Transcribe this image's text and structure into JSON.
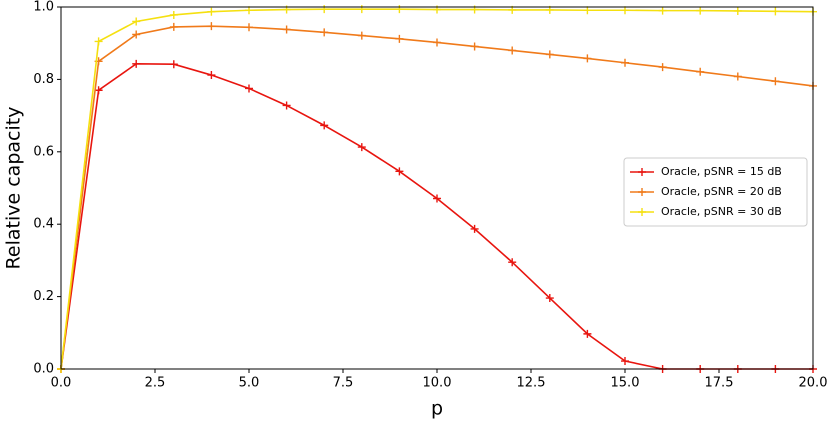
{
  "chart_data": {
    "type": "line",
    "x_label": "p",
    "y_label": "Relative capacity",
    "x": [
      0,
      1,
      2,
      3,
      4,
      5,
      6,
      7,
      8,
      9,
      10,
      11,
      12,
      13,
      14,
      15,
      16,
      17,
      18,
      19,
      20
    ],
    "series": [
      {
        "name": "Oracle, pSNR = 15 dB",
        "color": "#e8150f",
        "values": [
          0,
          0.77,
          0.843,
          0.842,
          0.812,
          0.775,
          0.728,
          0.673,
          0.613,
          0.546,
          0.471,
          0.387,
          0.295,
          0.196,
          0.097,
          0.022,
          0,
          0,
          0,
          0,
          0
        ]
      },
      {
        "name": "Oracle, pSNR = 20 dB",
        "color": "#f07a1a",
        "values": [
          0,
          0.85,
          0.924,
          0.945,
          0.947,
          0.944,
          0.938,
          0.93,
          0.921,
          0.912,
          0.902,
          0.891,
          0.88,
          0.869,
          0.858,
          0.846,
          0.834,
          0.821,
          0.808,
          0.795,
          0.782
        ]
      },
      {
        "name": "Oracle, pSNR = 30 dB",
        "color": "#f5e010",
        "values": [
          0,
          0.905,
          0.96,
          0.978,
          0.987,
          0.991,
          0.993,
          0.994,
          0.994,
          0.994,
          0.993,
          0.993,
          0.992,
          0.992,
          0.991,
          0.991,
          0.99,
          0.99,
          0.989,
          0.988,
          0.987
        ]
      }
    ],
    "xlim": [
      0,
      20
    ],
    "xticks": [
      {
        "value": 0,
        "label": "0.0"
      },
      2.5,
      {
        "value": 5,
        "label": "5.0"
      },
      7.5,
      {
        "value": 10,
        "label": "10.0"
      },
      12.5,
      {
        "value": 15,
        "label": "15.0"
      },
      17.5,
      {
        "value": 20,
        "label": "20.0"
      }
    ],
    "ylim": [
      0,
      1
    ],
    "yticks": [
      {
        "value": 0,
        "label": "0.0"
      },
      0.2,
      0.4,
      0.6,
      0.8,
      {
        "value": 1,
        "label": "1.0"
      }
    ],
    "legend": "center right",
    "marker": "+"
  }
}
